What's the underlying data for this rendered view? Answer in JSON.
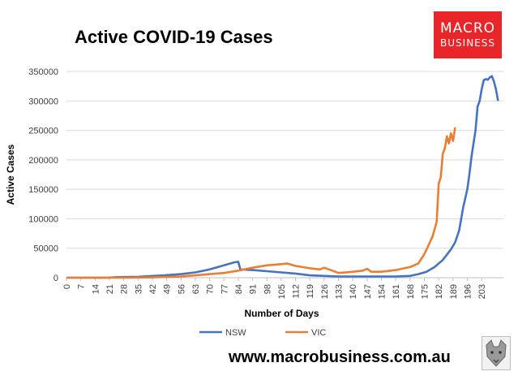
{
  "header": {
    "title": "Active COVID-19 Cases"
  },
  "logo": {
    "line1": "MACRO",
    "line2": "BUSINESS",
    "color": "#e8262a",
    "icon": "macrobusiness-logo"
  },
  "footer": {
    "url": "www.macrobusiness.com.au",
    "icon": "wolf-logo"
  },
  "chart_data": {
    "type": "line",
    "xlabel": "Number of Days",
    "ylabel": "Active Cases",
    "xlim": [
      0,
      210
    ],
    "ylim": [
      0,
      350000
    ],
    "x_ticks": [
      0,
      7,
      14,
      21,
      28,
      35,
      42,
      49,
      56,
      63,
      70,
      77,
      84,
      91,
      98,
      105,
      112,
      119,
      126,
      133,
      140,
      147,
      154,
      161,
      168,
      175,
      182,
      189,
      196,
      203
    ],
    "y_ticks": [
      0,
      50000,
      100000,
      150000,
      200000,
      250000,
      300000,
      350000
    ],
    "grid": "horizontal",
    "legend_position": "bottom",
    "series": [
      {
        "name": "NSW",
        "color": "#4472c4",
        "points": [
          [
            0,
            0
          ],
          [
            20,
            0
          ],
          [
            25,
            1000
          ],
          [
            35,
            1500
          ],
          [
            40,
            2500
          ],
          [
            48,
            4000
          ],
          [
            56,
            6000
          ],
          [
            63,
            9000
          ],
          [
            70,
            14000
          ],
          [
            77,
            21000
          ],
          [
            82,
            26000
          ],
          [
            84,
            27000
          ],
          [
            85,
            14000
          ],
          [
            91,
            13000
          ],
          [
            98,
            11000
          ],
          [
            105,
            9000
          ],
          [
            112,
            7000
          ],
          [
            119,
            4000
          ],
          [
            126,
            3000
          ],
          [
            133,
            2000
          ],
          [
            147,
            2000
          ],
          [
            161,
            2000
          ],
          [
            168,
            3000
          ],
          [
            172,
            6000
          ],
          [
            176,
            10000
          ],
          [
            180,
            18000
          ],
          [
            184,
            30000
          ],
          [
            188,
            48000
          ],
          [
            190,
            60000
          ],
          [
            192,
            80000
          ],
          [
            194,
            120000
          ],
          [
            196,
            150000
          ],
          [
            197,
            175000
          ],
          [
            198,
            205000
          ],
          [
            200,
            250000
          ],
          [
            201,
            290000
          ],
          [
            202,
            300000
          ],
          [
            203,
            320000
          ],
          [
            204,
            335000
          ],
          [
            205,
            337000
          ],
          [
            206,
            336000
          ],
          [
            207,
            340000
          ],
          [
            208,
            342000
          ],
          [
            209,
            333000
          ],
          [
            210,
            320000
          ],
          [
            211,
            300000
          ]
        ]
      },
      {
        "name": "VIC",
        "color": "#ed7d31",
        "points": [
          [
            0,
            0
          ],
          [
            28,
            0
          ],
          [
            42,
            500
          ],
          [
            56,
            2000
          ],
          [
            63,
            4000
          ],
          [
            70,
            6000
          ],
          [
            77,
            8000
          ],
          [
            84,
            12000
          ],
          [
            91,
            17000
          ],
          [
            98,
            21000
          ],
          [
            105,
            23000
          ],
          [
            108,
            24000
          ],
          [
            112,
            20000
          ],
          [
            119,
            16000
          ],
          [
            124,
            14000
          ],
          [
            126,
            17000
          ],
          [
            130,
            12000
          ],
          [
            133,
            8000
          ],
          [
            140,
            10000
          ],
          [
            145,
            12000
          ],
          [
            147,
            15000
          ],
          [
            149,
            10000
          ],
          [
            154,
            10000
          ],
          [
            161,
            13000
          ],
          [
            168,
            18000
          ],
          [
            172,
            24000
          ],
          [
            175,
            40000
          ],
          [
            177,
            55000
          ],
          [
            179,
            70000
          ],
          [
            181,
            95000
          ],
          [
            182,
            160000
          ],
          [
            183,
            170000
          ],
          [
            184,
            210000
          ],
          [
            185,
            220000
          ],
          [
            186,
            240000
          ],
          [
            187,
            228000
          ],
          [
            188,
            245000
          ],
          [
            189,
            232000
          ],
          [
            190,
            255000
          ]
        ]
      }
    ]
  }
}
